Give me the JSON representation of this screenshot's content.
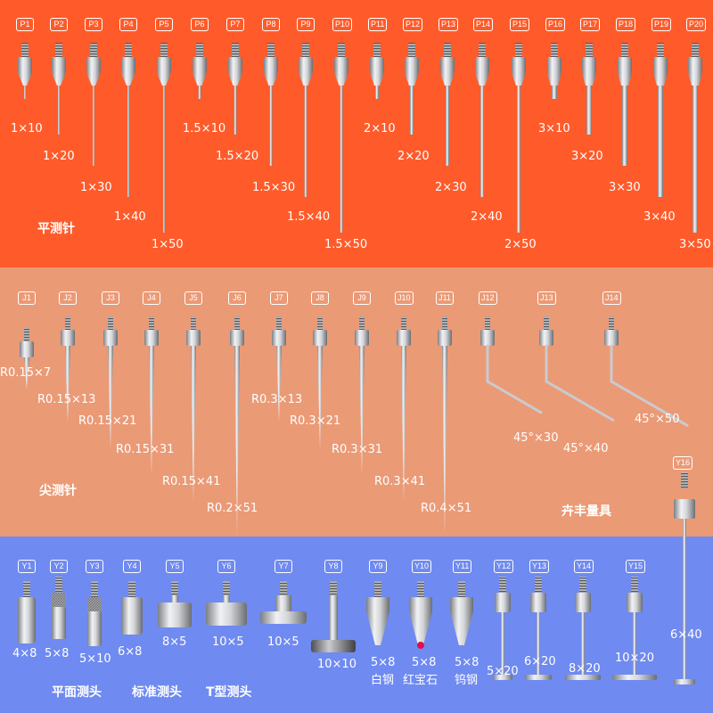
{
  "colors": {
    "top_band": "#ff5b2a",
    "mid_band": "#eb9a76",
    "bottom_band": "#6f8af0",
    "steel": "#c7c9cc",
    "ruby": "#e0114a"
  },
  "flat_probes": {
    "category_label": "平测针",
    "items": [
      {
        "code": "P1",
        "size": "1×10"
      },
      {
        "code": "P2",
        "size": "1×20"
      },
      {
        "code": "P3",
        "size": "1×30"
      },
      {
        "code": "P4",
        "size": "1×40"
      },
      {
        "code": "P5",
        "size": "1×50"
      },
      {
        "code": "P6",
        "size": "1.5×10"
      },
      {
        "code": "P7",
        "size": "1.5×20"
      },
      {
        "code": "P8",
        "size": "1.5×30"
      },
      {
        "code": "P9",
        "size": "1.5×40"
      },
      {
        "code": "P10",
        "size": "1.5×50"
      },
      {
        "code": "P11",
        "size": "2×10"
      },
      {
        "code": "P12",
        "size": "2×20"
      },
      {
        "code": "P13",
        "size": "2×30"
      },
      {
        "code": "P14",
        "size": "2×40"
      },
      {
        "code": "P15",
        "size": "2×50"
      },
      {
        "code": "P16",
        "size": "3×10"
      },
      {
        "code": "P17",
        "size": "3×20"
      },
      {
        "code": "P18",
        "size": "3×30"
      },
      {
        "code": "P19",
        "size": "3×40"
      },
      {
        "code": "P20",
        "size": "3×50"
      }
    ]
  },
  "pointed_probes": {
    "category_label": "尖测针",
    "brand": "卉丰量具",
    "items": [
      {
        "code": "J1",
        "size": "R0.15×7"
      },
      {
        "code": "J2",
        "size": "R0.15×13"
      },
      {
        "code": "J3",
        "size": "R0.15×21"
      },
      {
        "code": "J4",
        "size": "R0.15×31"
      },
      {
        "code": "J5",
        "size": "R0.15×41"
      },
      {
        "code": "J6",
        "size": "R0.2×51"
      },
      {
        "code": "J7",
        "size": "R0.3×13"
      },
      {
        "code": "J8",
        "size": "R0.3×21"
      },
      {
        "code": "J9",
        "size": "R0.3×31"
      },
      {
        "code": "J10",
        "size": "R0.3×41"
      },
      {
        "code": "J11",
        "size": "R0.4×51"
      },
      {
        "code": "J12",
        "size": "45°×30"
      },
      {
        "code": "J13",
        "size": "45°×40"
      },
      {
        "code": "J14",
        "size": "45°×50"
      }
    ]
  },
  "heads": {
    "labels": [
      "平面测头",
      "标准测头",
      "T型测头"
    ],
    "items": [
      {
        "code": "Y1",
        "size": "4×8"
      },
      {
        "code": "Y2",
        "size": "5×8"
      },
      {
        "code": "Y3",
        "size": "5×10"
      },
      {
        "code": "Y4",
        "size": "6×8"
      },
      {
        "code": "Y5",
        "size": "8×5"
      },
      {
        "code": "Y6",
        "size": "10×5"
      },
      {
        "code": "Y7",
        "size": "10×5"
      },
      {
        "code": "Y8",
        "size": "10×10"
      },
      {
        "code": "Y9",
        "size": "5×8",
        "material": "白钢"
      },
      {
        "code": "Y10",
        "size": "5×8",
        "material": "红宝石"
      },
      {
        "code": "Y11",
        "size": "5×8",
        "material": "钨钢"
      },
      {
        "code": "Y12",
        "size": "5×20"
      },
      {
        "code": "Y13",
        "size": "6×20"
      },
      {
        "code": "Y14",
        "size": "8×20"
      },
      {
        "code": "Y15",
        "size": "10×20"
      },
      {
        "code": "Y16",
        "size": "6×40"
      }
    ]
  }
}
